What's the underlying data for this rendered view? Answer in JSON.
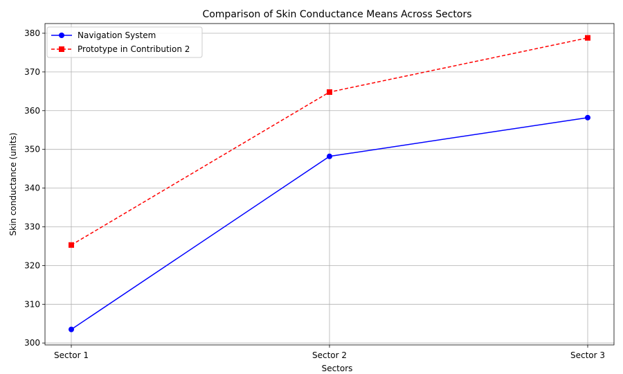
{
  "chart_data": {
    "type": "line",
    "title": "Comparison of Skin Conductance Means Across Sectors",
    "xlabel": "Sectors",
    "ylabel": "Skin conductance (units)",
    "categories": [
      "Sector 1",
      "Sector 2",
      "Sector 3"
    ],
    "ylim": [
      299.5,
      382.5
    ],
    "yticks": [
      300,
      310,
      320,
      330,
      340,
      350,
      360,
      370,
      380
    ],
    "grid": true,
    "legend_position": "upper left",
    "series": [
      {
        "name": "Navigation System",
        "values": [
          303.5,
          348.2,
          358.2
        ],
        "color": "#0000ff",
        "linestyle": "solid",
        "marker": "circle"
      },
      {
        "name": "Prototype in Contribution 2",
        "values": [
          325.3,
          364.8,
          378.8
        ],
        "color": "#ff0000",
        "linestyle": "dashed",
        "marker": "square"
      }
    ]
  }
}
